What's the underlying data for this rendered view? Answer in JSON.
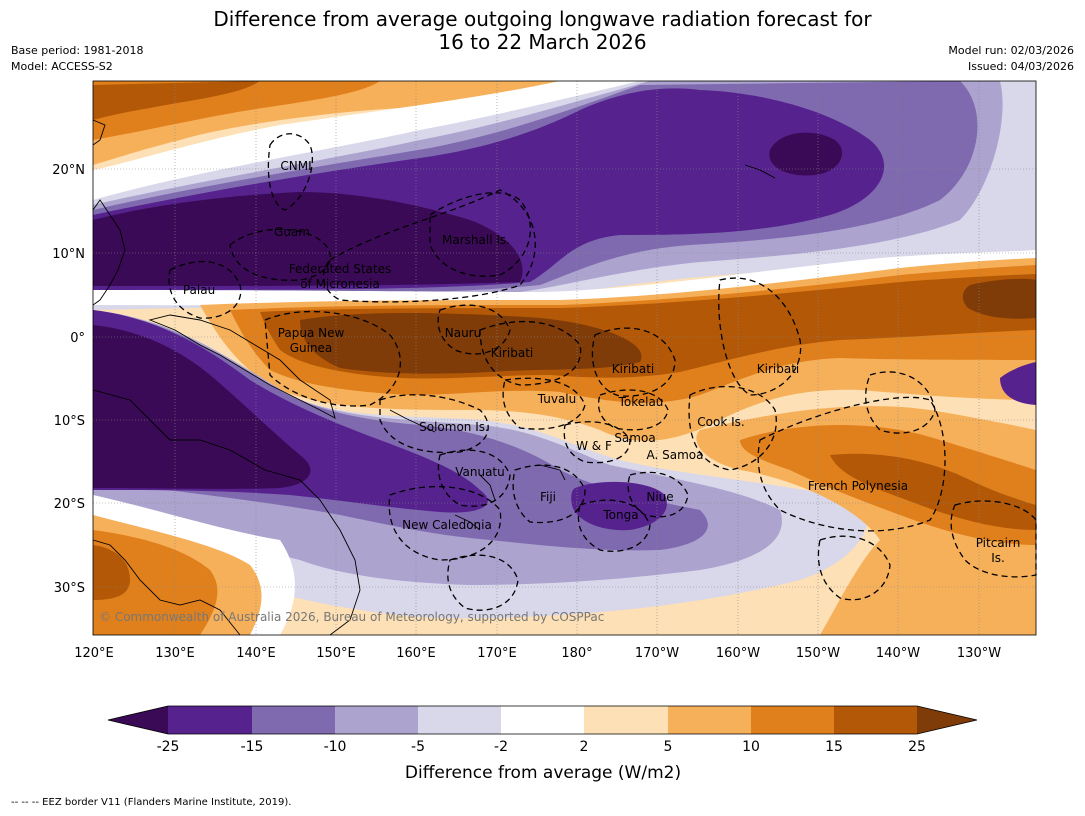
{
  "header": {
    "title_line1": "Difference from average outgoing longwave radiation forecast for",
    "title_line2": "16 to 22 March 2026",
    "base_period": "Base period: 1981-2018",
    "model": "Model: ACCESS-S2",
    "model_run": "Model run: 02/03/2026",
    "issued": "Issued: 04/03/2026"
  },
  "axes": {
    "lat_labels": [
      "20°N",
      "10°N",
      "0°",
      "10°S",
      "20°S",
      "30°S"
    ],
    "lon_labels": [
      "120°E",
      "130°E",
      "140°E",
      "150°E",
      "160°E",
      "170°E",
      "180°",
      "170°W",
      "160°W",
      "150°W",
      "140°W",
      "130°W"
    ]
  },
  "regions": {
    "cnmi": "CNMI",
    "guam": "Guam",
    "marshall": "Marshall Is.",
    "fsm1": "Federated States",
    "fsm2": "of Micronesia",
    "palau": "Palau",
    "png1": "Papua New",
    "png2": "Guinea",
    "nauru": "Nauru",
    "kiribati_w": "Kiribati",
    "kiribati_c": "Kiribati",
    "kiribati_e": "Kiribati",
    "tuvalu": "Tuvalu",
    "tokelau": "Tokelau",
    "cook": "Cook Is.",
    "solomon": "Solomon Is.",
    "wf": "W & F",
    "samoa": "Samoa",
    "asamoa": "A. Samoa",
    "vanuatu": "Vanuatu",
    "fiji": "Fiji",
    "niue": "Niue",
    "tonga": "Tonga",
    "frpoly": "French Polynesia",
    "newcal": "New Caledonia",
    "pitcairn1": "Pitcairn",
    "pitcairn2": "Is."
  },
  "copyright": "© Commonwealth of Australia 2026, Bureau of Meteorology, supported by COSPPac",
  "colorbar": {
    "ticks": [
      "-25",
      "-15",
      "-10",
      "-5",
      "-2",
      "2",
      "5",
      "10",
      "15",
      "25"
    ],
    "colors": [
      "#3b0a56",
      "#56228e",
      "#7f6aaf",
      "#aca3cf",
      "#d9d7ea",
      "#ffffff",
      "#fde0b5",
      "#f7b05a",
      "#e0801c",
      "#b35806",
      "#7f3b08"
    ],
    "title": "Difference from average (W/m2)"
  },
  "footer": "--  --  -- EEZ border V11 (Flanders Marine Institute, 2019)."
}
